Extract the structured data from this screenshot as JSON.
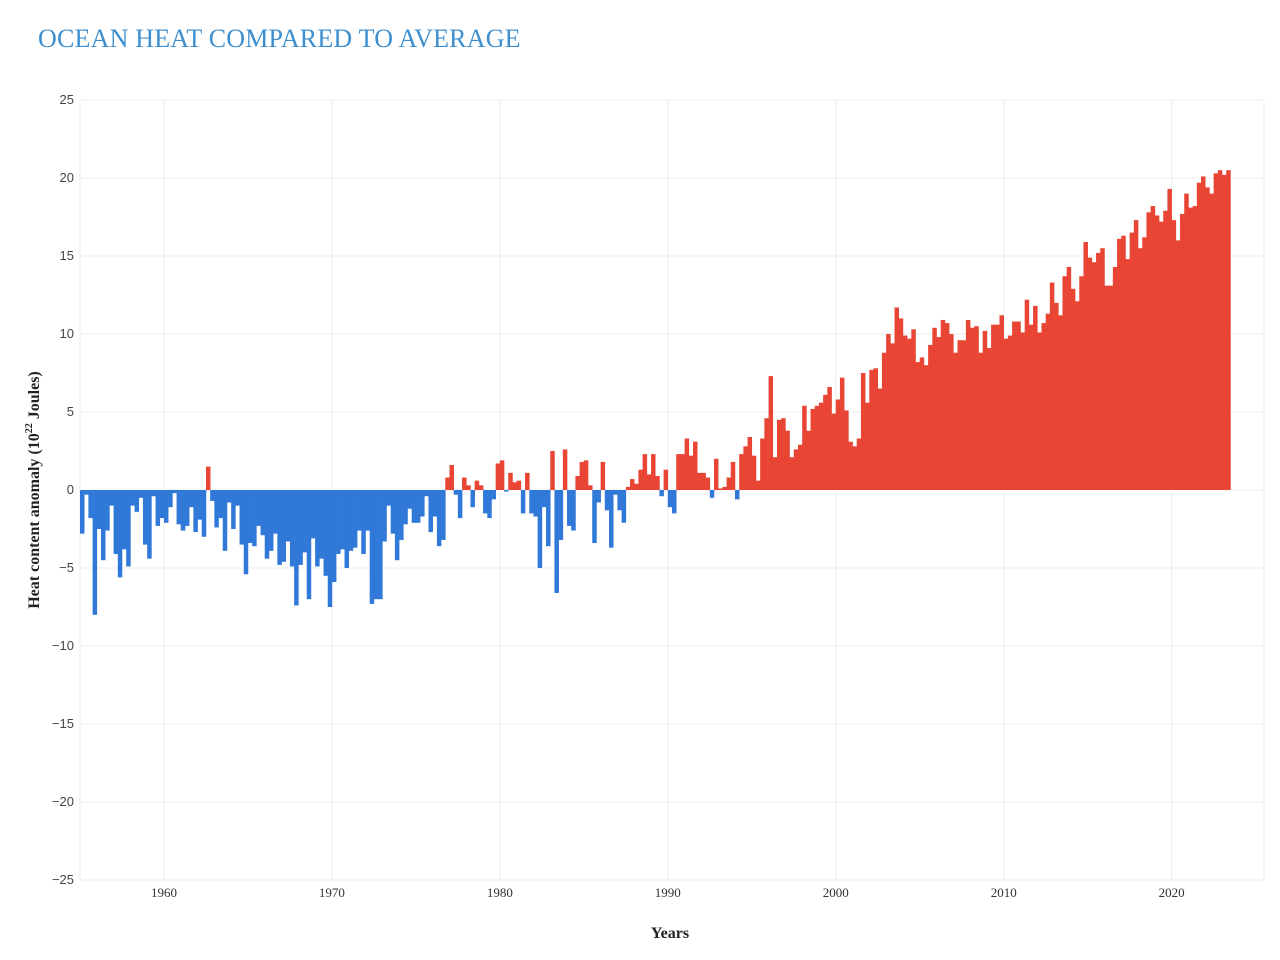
{
  "title": "OCEAN HEAT COMPARED TO AVERAGE",
  "colors": {
    "title": "#3d8fd0",
    "positive": "#e94534",
    "negative": "#3079d8",
    "grid": "#eeeeee"
  },
  "chart_data": {
    "type": "bar",
    "title": "OCEAN HEAT COMPARED TO AVERAGE",
    "xlabel": "Years",
    "ylabel_main": "Heat content anomaly (10",
    "ylabel_exp": "22",
    "ylabel_tail": " Joules)",
    "ylim": [
      -25,
      25
    ],
    "xlim": [
      1955.0,
      2025.5
    ],
    "yticks": [
      25,
      20,
      15,
      10,
      5,
      0,
      -5,
      -10,
      -15,
      -20,
      -25
    ],
    "ytick_labels": [
      "25",
      "20",
      "15",
      "10",
      "5",
      "0",
      "−5",
      "−10",
      "−15",
      "−20",
      "−25"
    ],
    "xticks": [
      1960,
      1970,
      1980,
      1990,
      2000,
      2010,
      2020
    ],
    "xtick_labels": [
      "1960",
      "1970",
      "1980",
      "1990",
      "2000",
      "2010",
      "2020"
    ],
    "start_year": 1955.0,
    "step": 0.25,
    "values": [
      -2.8,
      -0.3,
      -1.8,
      -8.0,
      -2.5,
      -4.5,
      -2.6,
      -1.0,
      -4.1,
      -5.6,
      -3.8,
      -4.9,
      -1.0,
      -1.4,
      -0.5,
      -3.5,
      -4.4,
      -0.4,
      -2.3,
      -1.8,
      -2.1,
      -1.1,
      -0.2,
      -2.2,
      -2.6,
      -2.3,
      -1.1,
      -2.7,
      -1.9,
      -3.0,
      1.5,
      -0.7,
      -2.4,
      -1.8,
      -3.9,
      -0.8,
      -2.5,
      -1.0,
      -3.5,
      -5.4,
      -3.4,
      -3.6,
      -2.3,
      -2.9,
      -4.4,
      -3.9,
      -2.8,
      -4.8,
      -4.6,
      -3.3,
      -4.9,
      -7.4,
      -4.8,
      -4.0,
      -7.0,
      -3.1,
      -4.9,
      -4.4,
      -5.5,
      -7.5,
      -5.9,
      -4.1,
      -3.8,
      -5.0,
      -3.9,
      -3.7,
      -2.6,
      -4.1,
      -2.6,
      -7.3,
      -7.0,
      -7.0,
      -3.3,
      -1.0,
      -2.8,
      -4.5,
      -3.2,
      -2.2,
      -1.2,
      -2.1,
      -2.1,
      -1.7,
      -0.4,
      -2.7,
      -1.7,
      -3.6,
      -3.2,
      0.8,
      1.6,
      -0.3,
      -1.8,
      0.8,
      0.3,
      -1.1,
      0.6,
      0.3,
      -1.5,
      -1.8,
      -0.6,
      1.7,
      1.9,
      -0.1,
      1.1,
      0.5,
      0.6,
      -1.5,
      1.1,
      -1.5,
      -1.7,
      -5.0,
      -1.1,
      -3.6,
      2.5,
      -6.6,
      -3.2,
      2.6,
      -2.3,
      -2.6,
      0.9,
      1.8,
      1.9,
      0.3,
      -3.4,
      -0.8,
      1.8,
      -1.3,
      -3.7,
      -0.3,
      -1.3,
      -2.1,
      0.2,
      0.7,
      0.4,
      1.3,
      2.3,
      1.0,
      2.3,
      0.9,
      -0.4,
      1.3,
      -1.1,
      -1.5,
      2.3,
      2.3,
      3.3,
      2.2,
      3.1,
      1.1,
      1.1,
      0.8,
      -0.5,
      2.0,
      0.1,
      0.2,
      0.8,
      1.8,
      -0.6,
      2.3,
      2.8,
      3.4,
      2.2,
      0.6,
      3.3,
      4.6,
      7.3,
      2.1,
      4.5,
      4.6,
      3.8,
      2.1,
      2.6,
      2.9,
      5.4,
      3.8,
      5.2,
      5.4,
      5.6,
      6.1,
      6.6,
      4.9,
      5.8,
      7.2,
      5.1,
      3.1,
      2.8,
      3.3,
      7.5,
      5.6,
      7.7,
      7.8,
      6.5,
      8.8,
      10.0,
      9.4,
      11.7,
      11.0,
      9.9,
      9.7,
      10.3,
      8.2,
      8.5,
      8.0,
      9.3,
      10.4,
      9.8,
      10.9,
      10.7,
      10.0,
      8.8,
      9.6,
      9.6,
      10.9,
      10.4,
      10.5,
      8.8,
      10.2,
      9.1,
      10.6,
      10.6,
      11.2,
      9.7,
      9.9,
      10.8,
      10.8,
      10.1,
      12.2,
      10.6,
      11.8,
      10.1,
      10.7,
      11.3,
      13.3,
      12.0,
      11.2,
      13.7,
      14.3,
      12.9,
      12.1,
      13.7,
      15.9,
      14.9,
      14.6,
      15.2,
      15.5,
      13.1,
      13.1,
      14.3,
      16.1,
      16.3,
      14.8,
      16.5,
      17.3,
      15.5,
      16.2,
      17.8,
      18.2,
      17.6,
      17.2,
      17.9,
      19.3,
      17.3,
      16.0,
      17.7,
      19.0,
      18.1,
      18.2,
      19.7,
      20.1,
      19.4,
      19.0,
      20.3,
      20.5,
      20.2,
      20.5
    ]
  },
  "data_source_note": ""
}
